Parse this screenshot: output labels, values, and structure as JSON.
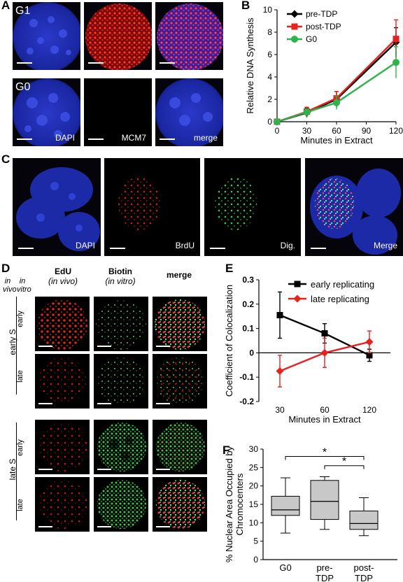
{
  "panel_letters": {
    "a": "A",
    "b": "B",
    "c": "C",
    "d": "D",
    "e": "E",
    "f": "F"
  },
  "panel_a": {
    "row_labels": [
      "G1",
      "G0"
    ],
    "channel_labels": [
      "DAPI",
      "MCM7",
      "merge"
    ]
  },
  "panel_c": {
    "channel_labels": [
      "DAPI",
      "BrdU",
      "Dig.",
      "Merge"
    ]
  },
  "panel_d": {
    "col_headers": {
      "in_vivo_italic": "in vivo",
      "in_vitro_italic": "in vitro",
      "edu_title": "EdU",
      "edu_sub": "(in vivo)",
      "biotin_title": "Biotin",
      "biotin_sub": "(in vitro)",
      "merge": "merge"
    },
    "group_labels": [
      "early S",
      "late S"
    ],
    "row_labels": [
      "early",
      "late",
      "early",
      "late"
    ]
  },
  "colors": {
    "black_series": "#000000",
    "red_series": "#e8201e",
    "green_series": "#2db34a",
    "line_e_red": "#e8201e",
    "box_fill": "#c8c8c8"
  },
  "chart_data": [
    {
      "id": "B",
      "type": "line",
      "xlabel": "Minutes in Extract",
      "ylabel": "Relative DNA Synthesis",
      "xlim": [
        0,
        120
      ],
      "ylim": [
        0,
        10
      ],
      "xticks": [
        0,
        30,
        60,
        90,
        120
      ],
      "yticks": [
        0,
        2,
        4,
        6,
        8,
        10
      ],
      "legend_position": "top-left",
      "x": [
        0,
        30,
        60,
        120
      ],
      "series": [
        {
          "name": "pre-TDP",
          "color": "#000000",
          "marker": "diamond",
          "values": [
            0,
            0.8,
            2.0,
            7.1
          ],
          "err": [
            0.1,
            0.4,
            0.7,
            1.3
          ]
        },
        {
          "name": "post-TDP",
          "color": "#e8201e",
          "marker": "square",
          "values": [
            0,
            0.9,
            2.1,
            7.4
          ],
          "err": [
            0.1,
            0.4,
            0.6,
            1.7
          ]
        },
        {
          "name": "G0",
          "color": "#2db34a",
          "marker": "circle",
          "values": [
            0,
            0.85,
            1.7,
            5.3
          ],
          "err": [
            0.1,
            0.3,
            0.6,
            1.4
          ]
        }
      ]
    },
    {
      "id": "E",
      "type": "line",
      "xlabel": "Minutes in Extract",
      "ylabel": "Coefficient of Colocalization",
      "categories": [
        "30",
        "60",
        "120"
      ],
      "ylim": [
        -0.2,
        0.3
      ],
      "yticks": [
        -0.2,
        -0.1,
        0,
        0.1,
        0.2,
        0.3
      ],
      "legend_position": "top-right",
      "series": [
        {
          "name": "early replicating",
          "color": "#000000",
          "marker": "square",
          "values": [
            0.155,
            0.08,
            -0.01
          ],
          "err": [
            0.095,
            0.04,
            0.025
          ]
        },
        {
          "name": "late replicating",
          "color": "#e8201e",
          "marker": "diamond",
          "values": [
            -0.075,
            0.0,
            0.045
          ],
          "err": [
            0.065,
            0.06,
            0.045
          ]
        }
      ]
    },
    {
      "id": "F",
      "type": "box",
      "ylabel": "% Nuclear Area Occupied by Chromocenters",
      "ylim": [
        0,
        30
      ],
      "yticks": [
        0,
        5,
        10,
        15,
        20,
        25,
        30
      ],
      "categories": [
        "G0",
        "pre-TDP",
        "post-TDP"
      ],
      "boxes": [
        {
          "min": 7.2,
          "q1": 12,
          "median": 13.5,
          "q3": 17.2,
          "max": 22.2
        },
        {
          "min": 8.2,
          "q1": 10.9,
          "median": 15.8,
          "q3": 21.5,
          "max": 22.5
        },
        {
          "min": 6.5,
          "q1": 8.2,
          "median": 9.8,
          "q3": 13.2,
          "max": 16.8
        }
      ],
      "significance": [
        {
          "from": "G0",
          "to": "post-TDP",
          "label": "*"
        },
        {
          "from": "pre-TDP",
          "to": "post-TDP",
          "label": "*"
        }
      ]
    }
  ]
}
